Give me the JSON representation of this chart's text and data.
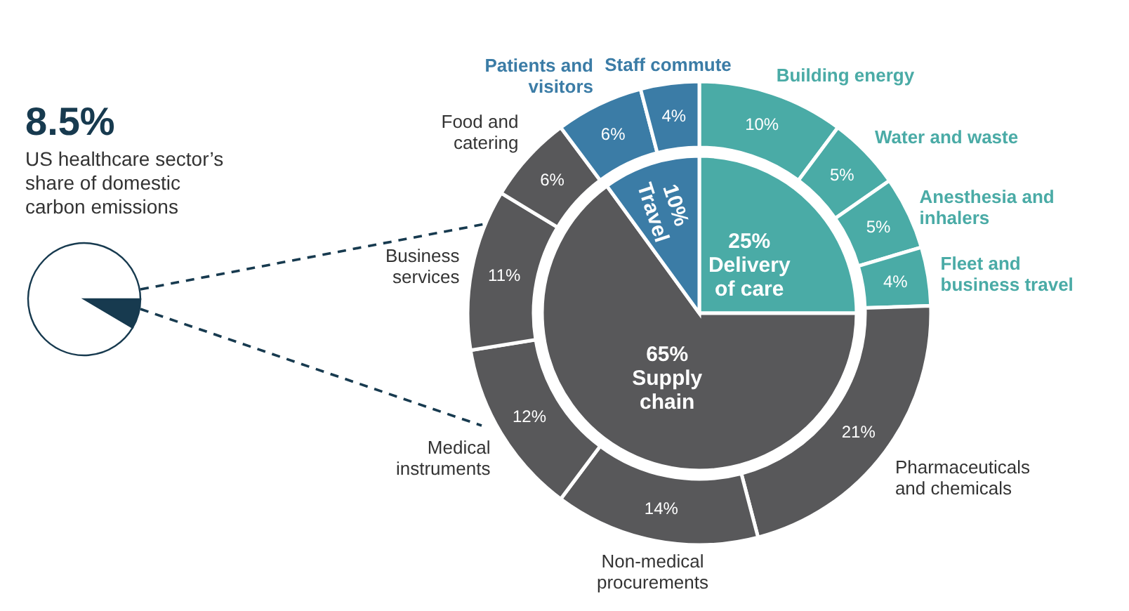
{
  "chart_data": [
    {
      "type": "pie",
      "title": "8.5%",
      "subtitle": "US healthcare sector’s share of domestic carbon emissions",
      "categories": [
        null,
        null
      ],
      "values": [
        8.5,
        91.5
      ],
      "colors": [
        "#173a4f",
        "#ffffff"
      ]
    },
    {
      "type": "pie",
      "categories": [
        "Delivery of care",
        "Supply chain",
        "Travel"
      ],
      "values": [
        25,
        65,
        10
      ],
      "colors": [
        "#4aaba6",
        "#58585a",
        "#3b7ca6"
      ],
      "value_labels": [
        "25%",
        "65%",
        "10%"
      ]
    },
    {
      "type": "donut",
      "categories": [
        "Building energy",
        "Water and waste",
        "Anesthesia and inhalers",
        "Fleet and business travel",
        "Pharmaceuticals and chemicals",
        "Non-medical procurements",
        "Medical instruments",
        "Business services",
        "Food and catering",
        "Patients and visitors",
        "Staff commute"
      ],
      "values": [
        10,
        5,
        5,
        4,
        21,
        14,
        12,
        11,
        6,
        6,
        4
      ],
      "colors": [
        "#4aaba6",
        "#4aaba6",
        "#4aaba6",
        "#4aaba6",
        "#58585a",
        "#58585a",
        "#58585a",
        "#58585a",
        "#58585a",
        "#3b7ca6",
        "#3b7ca6"
      ],
      "value_labels": [
        "10%",
        "5%",
        "5%",
        "4%",
        "21%",
        "14%",
        "12%",
        "11%",
        "6%",
        "6%",
        "4%"
      ]
    }
  ]
}
